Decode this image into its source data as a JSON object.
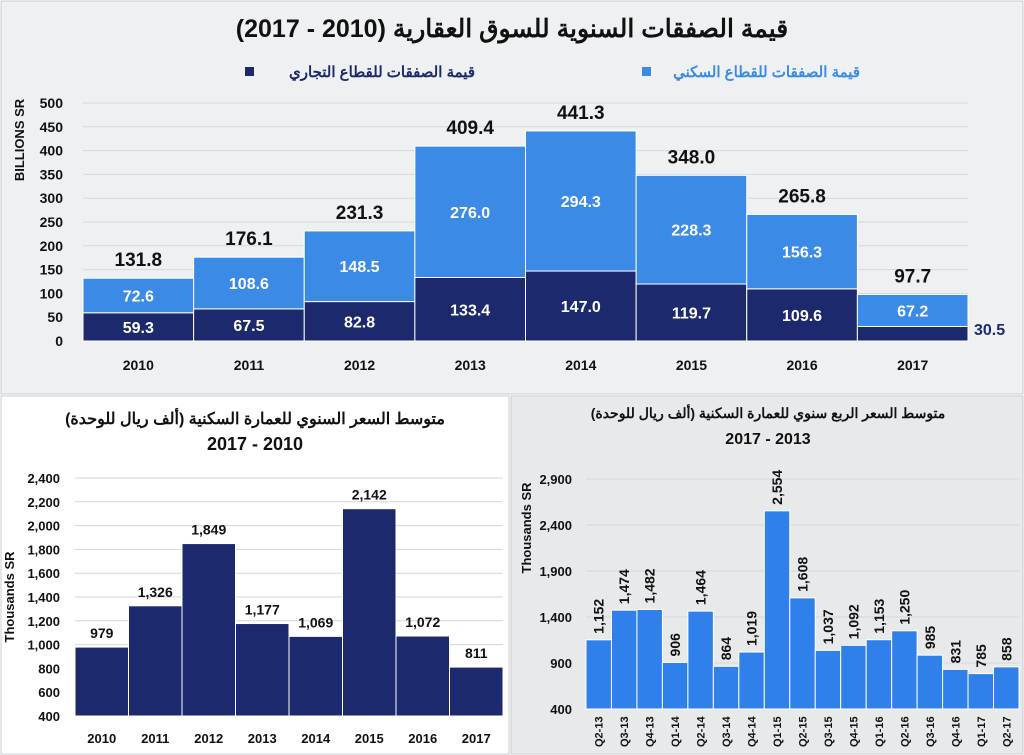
{
  "colors": {
    "commercial": "#1c2a6d",
    "residential": "#3b8be6",
    "bar_single": "#1c2a6d",
    "bar_quarter": "#2f80ea",
    "panel": "#eef0f2",
    "panel2": "#e8e9eb"
  },
  "chart_data": [
    {
      "type": "bar",
      "stacked": true,
      "title": "قيمة الصفقات السنوية للسوق العقارية (2010 - 2017)",
      "ylabel": "BILLIONS SR",
      "ylim": [
        0,
        500
      ],
      "yticks": [
        0,
        50,
        100,
        150,
        200,
        250,
        300,
        350,
        400,
        450,
        500
      ],
      "grid": true,
      "legend": "top",
      "categories": [
        "2010",
        "2011",
        "2012",
        "2013",
        "2014",
        "2015",
        "2016",
        "2017"
      ],
      "series": [
        {
          "name": "قيمة الصفقات للقطاع التجاري",
          "values": [
            59.3,
            67.5,
            82.8,
            133.4,
            147.0,
            119.7,
            109.6,
            30.5
          ],
          "labels": [
            "59.3",
            "67.5",
            "82.8",
            "133.4",
            "147.0",
            "119.7",
            "109.6",
            "30.5"
          ]
        },
        {
          "name": "قيمة الصفقات للقطاع السكني",
          "values": [
            72.6,
            108.6,
            148.5,
            276.0,
            294.3,
            228.3,
            156.3,
            67.2
          ],
          "labels": [
            "72.6",
            "108.6",
            "148.5",
            "276.0",
            "294.3",
            "228.3",
            "156.3",
            "67.2"
          ]
        }
      ],
      "totals": [
        "131.8",
        "176.1",
        "231.3",
        "409.4",
        "441.3",
        "348.0",
        "265.8",
        "97.7"
      ]
    },
    {
      "type": "bar",
      "title": "متوسط السعر السنوي للعمارة السكنية   (ألف ريال للوحدة)",
      "subtitle": "2017 - 2010",
      "ylabel": "Thousands SR",
      "ylim": [
        400,
        2400
      ],
      "yticks": [
        "400",
        "600",
        "800",
        "1,000",
        "1,200",
        "1,400",
        "1,600",
        "1,800",
        "2,000",
        "2,200",
        "2,400"
      ],
      "grid": true,
      "categories": [
        "2010",
        "2011",
        "2012",
        "2013",
        "2014",
        "2015",
        "2016",
        "2017"
      ],
      "values": [
        979,
        1326,
        1849,
        1177,
        1069,
        2142,
        1072,
        811
      ],
      "labels": [
        "979",
        "1,326",
        "1,849",
        "1,177",
        "1,069",
        "2,142",
        "1,072",
        "811"
      ]
    },
    {
      "type": "bar",
      "title": "متوسط السعر الربع سنوي للعمارة السكنية  (ألف ريال للوحدة)",
      "subtitle": "2017 - 2013",
      "ylabel": "Thousands SR",
      "ylim": [
        400,
        2900
      ],
      "yticks": [
        "400",
        "900",
        "1,400",
        "1,900",
        "2,400",
        "2,900"
      ],
      "grid": true,
      "categories": [
        "Q2-13",
        "Q3-13",
        "Q4-13",
        "Q1-14",
        "Q2-14",
        "Q3-14",
        "Q4-14",
        "Q1-15",
        "Q2-15",
        "Q3-15",
        "Q4-15",
        "Q1-16",
        "Q2-16",
        "Q3-16",
        "Q4-16",
        "Q1-17",
        "Q2-17"
      ],
      "values": [
        1152,
        1474,
        1482,
        906,
        1464,
        864,
        1019,
        2554,
        1608,
        1037,
        1092,
        1153,
        1250,
        985,
        831,
        785,
        858
      ],
      "labels": [
        "1,152",
        "1,474",
        "1,482",
        "906",
        "1,464",
        "864",
        "1,019",
        "2,554",
        "1,608",
        "1,037",
        "1,092",
        "1,153",
        "1,250",
        "985",
        "831",
        "785",
        "858"
      ]
    }
  ]
}
